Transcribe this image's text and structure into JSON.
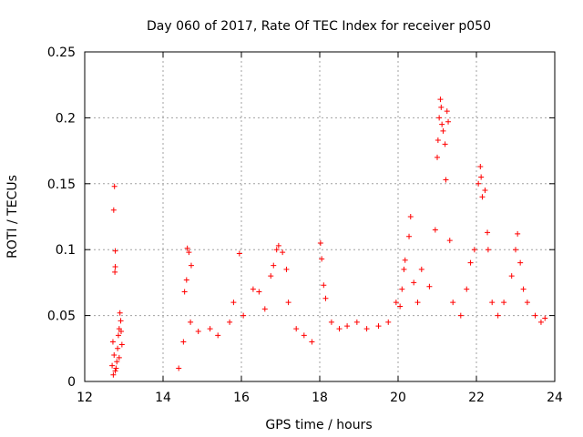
{
  "chart_data": {
    "type": "scatter",
    "title": "Day 060 of 2017, Rate Of TEC Index for receiver p050",
    "xlabel": "GPS time / hours",
    "ylabel": "ROTI / TECUs",
    "xlim": [
      12,
      24
    ],
    "ylim": [
      0,
      0.25
    ],
    "xticks": [
      12,
      14,
      16,
      18,
      20,
      22,
      24
    ],
    "xtick_labels": [
      "12",
      "14",
      "16",
      "18",
      "20",
      "22",
      "24"
    ],
    "yticks": [
      0,
      0.05,
      0.1,
      0.15,
      0.2,
      0.25
    ],
    "ytick_labels": [
      "0",
      "0.05",
      "0.1",
      "0.15",
      "0.2",
      "0.25"
    ],
    "grid": true,
    "marker": "+",
    "marker_color": "#ff0000",
    "series": [
      {
        "name": "ROTI",
        "points": [
          [
            12.76,
            0.148
          ],
          [
            12.74,
            0.13
          ],
          [
            12.78,
            0.099
          ],
          [
            12.78,
            0.087
          ],
          [
            12.77,
            0.083
          ],
          [
            12.72,
            0.03
          ],
          [
            12.75,
            0.02
          ],
          [
            12.8,
            0.01
          ],
          [
            12.84,
            0.025
          ],
          [
            12.88,
            0.04
          ],
          [
            12.9,
            0.052
          ],
          [
            12.92,
            0.046
          ],
          [
            12.86,
            0.035
          ],
          [
            12.82,
            0.015
          ],
          [
            12.78,
            0.008
          ],
          [
            12.95,
            0.028
          ],
          [
            12.7,
            0.012
          ],
          [
            12.73,
            0.005
          ],
          [
            12.93,
            0.038
          ],
          [
            12.88,
            0.018
          ],
          [
            14.4,
            0.01
          ],
          [
            14.52,
            0.03
          ],
          [
            14.55,
            0.068
          ],
          [
            14.6,
            0.077
          ],
          [
            14.62,
            0.101
          ],
          [
            14.66,
            0.098
          ],
          [
            14.72,
            0.088
          ],
          [
            14.7,
            0.045
          ],
          [
            14.9,
            0.038
          ],
          [
            15.2,
            0.04
          ],
          [
            15.4,
            0.035
          ],
          [
            15.7,
            0.045
          ],
          [
            15.8,
            0.06
          ],
          [
            15.95,
            0.097
          ],
          [
            16.05,
            0.05
          ],
          [
            16.3,
            0.07
          ],
          [
            16.45,
            0.068
          ],
          [
            16.6,
            0.055
          ],
          [
            16.75,
            0.08
          ],
          [
            16.82,
            0.088
          ],
          [
            16.9,
            0.1
          ],
          [
            16.95,
            0.103
          ],
          [
            17.05,
            0.098
          ],
          [
            17.15,
            0.085
          ],
          [
            17.2,
            0.06
          ],
          [
            17.4,
            0.04
          ],
          [
            17.6,
            0.035
          ],
          [
            17.8,
            0.03
          ],
          [
            18.02,
            0.105
          ],
          [
            18.05,
            0.093
          ],
          [
            18.1,
            0.073
          ],
          [
            18.15,
            0.063
          ],
          [
            18.3,
            0.045
          ],
          [
            18.5,
            0.04
          ],
          [
            18.7,
            0.042
          ],
          [
            18.95,
            0.045
          ],
          [
            19.2,
            0.04
          ],
          [
            19.5,
            0.042
          ],
          [
            19.75,
            0.045
          ],
          [
            19.95,
            0.06
          ],
          [
            20.05,
            0.057
          ],
          [
            20.1,
            0.07
          ],
          [
            20.15,
            0.085
          ],
          [
            20.18,
            0.092
          ],
          [
            20.28,
            0.11
          ],
          [
            20.32,
            0.125
          ],
          [
            20.4,
            0.075
          ],
          [
            20.5,
            0.06
          ],
          [
            20.6,
            0.085
          ],
          [
            20.8,
            0.072
          ],
          [
            20.95,
            0.115
          ],
          [
            21.0,
            0.17
          ],
          [
            21.02,
            0.183
          ],
          [
            21.05,
            0.2
          ],
          [
            21.08,
            0.214
          ],
          [
            21.1,
            0.208
          ],
          [
            21.12,
            0.195
          ],
          [
            21.15,
            0.19
          ],
          [
            21.2,
            0.18
          ],
          [
            21.22,
            0.153
          ],
          [
            21.25,
            0.205
          ],
          [
            21.28,
            0.197
          ],
          [
            21.32,
            0.107
          ],
          [
            21.4,
            0.06
          ],
          [
            21.6,
            0.05
          ],
          [
            21.75,
            0.07
          ],
          [
            21.85,
            0.09
          ],
          [
            21.95,
            0.1
          ],
          [
            22.05,
            0.15
          ],
          [
            22.1,
            0.163
          ],
          [
            22.12,
            0.155
          ],
          [
            22.15,
            0.14
          ],
          [
            22.22,
            0.145
          ],
          [
            22.28,
            0.113
          ],
          [
            22.3,
            0.1
          ],
          [
            22.4,
            0.06
          ],
          [
            22.55,
            0.05
          ],
          [
            22.7,
            0.06
          ],
          [
            22.9,
            0.08
          ],
          [
            23.0,
            0.1
          ],
          [
            23.05,
            0.112
          ],
          [
            23.12,
            0.09
          ],
          [
            23.2,
            0.07
          ],
          [
            23.3,
            0.06
          ],
          [
            23.5,
            0.05
          ],
          [
            23.65,
            0.045
          ],
          [
            23.75,
            0.048
          ]
        ]
      }
    ]
  }
}
